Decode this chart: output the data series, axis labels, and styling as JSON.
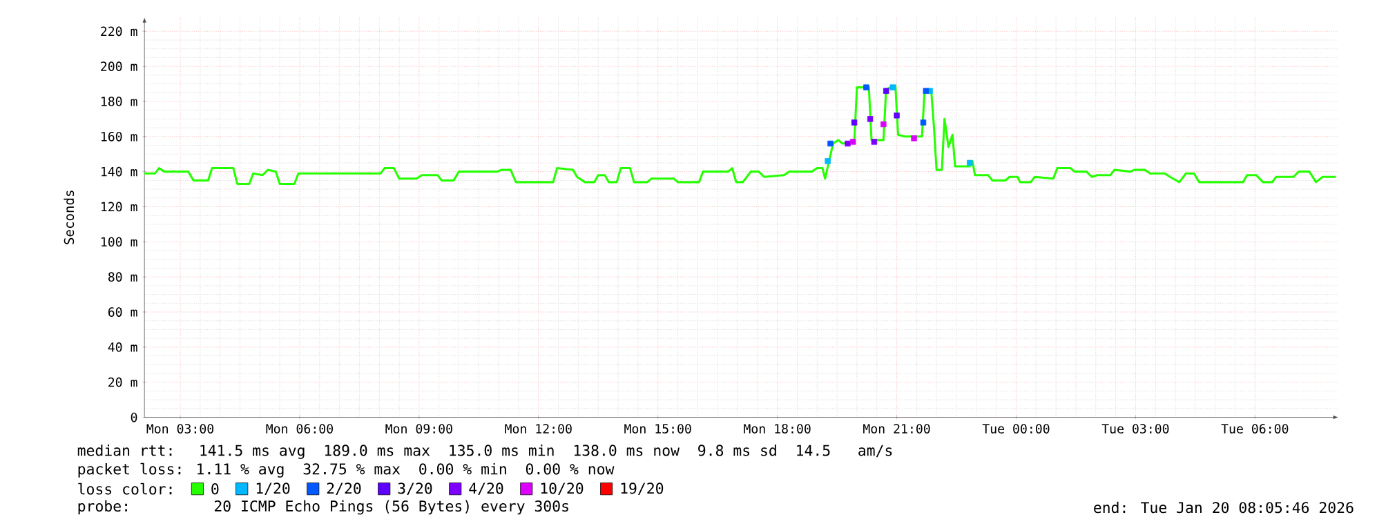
{
  "chart_data": {
    "type": "scatter",
    "ylabel": "Seconds",
    "legend_title": "loss color:",
    "legend": "bottom",
    "grid": true,
    "xlim": [
      "2026-01-19T02:06",
      "2026-01-20T08:06"
    ],
    "ylim": [
      0,
      228
    ],
    "xticks": [
      {
        "value": "2026-01-19T03:00",
        "label": "Mon 03:00"
      },
      {
        "value": "2026-01-19T06:00",
        "label": "Mon 06:00"
      },
      {
        "value": "2026-01-19T09:00",
        "label": "Mon 09:00"
      },
      {
        "value": "2026-01-19T12:00",
        "label": "Mon 12:00"
      },
      {
        "value": "2026-01-19T15:00",
        "label": "Mon 15:00"
      },
      {
        "value": "2026-01-19T18:00",
        "label": "Mon 18:00"
      },
      {
        "value": "2026-01-19T21:00",
        "label": "Mon 21:00"
      },
      {
        "value": "2026-01-20T00:00",
        "label": "Tue 00:00"
      },
      {
        "value": "2026-01-20T03:00",
        "label": "Tue 03:00"
      },
      {
        "value": "2026-01-20T06:00",
        "label": "Tue 06:00"
      }
    ],
    "yticks": [
      0,
      {
        "value": 20,
        "label": "20 m"
      },
      {
        "value": 40,
        "label": "40 m"
      },
      {
        "value": 60,
        "label": "60 m"
      },
      {
        "value": 80,
        "label": "80 m"
      },
      {
        "value": 100,
        "label": "100 m"
      },
      {
        "value": 120,
        "label": "120 m"
      },
      {
        "value": 140,
        "label": "140 m"
      },
      {
        "value": 160,
        "label": "160 m"
      },
      {
        "value": 180,
        "label": "180 m"
      },
      {
        "value": 200,
        "label": "200 m"
      },
      {
        "value": 220,
        "label": "220 m"
      }
    ],
    "annotations": [
      "median rtt:  141.5 ms avg  189.0 ms max  135.0 ms min  138.0 ms now  9.8 ms sd  14.5   am/s",
      "packet loss: 1.11 % avg  32.75 % max  0.00 % min  0.00 % now",
      "probe:       20 ICMP Echo Pings (56 Bytes) every 300s",
      "end: Tue Jan 20 08:05:46 2026"
    ],
    "series": [
      {
        "name": "0",
        "type": "line",
        "color": "#26ff00",
        "x": [
          "2026-01-19T02:06",
          "2026-01-19T02:22",
          "2026-01-19T02:28",
          "2026-01-19T02:36",
          "2026-01-19T03:12",
          "2026-01-19T03:20",
          "2026-01-19T03:42",
          "2026-01-19T03:48",
          "2026-01-19T04:20",
          "2026-01-19T04:26",
          "2026-01-19T04:44",
          "2026-01-19T04:50",
          "2026-01-19T05:04",
          "2026-01-19T05:12",
          "2026-01-19T05:24",
          "2026-01-19T05:30",
          "2026-01-19T05:52",
          "2026-01-19T05:58",
          "2026-01-19T08:02",
          "2026-01-19T08:08",
          "2026-01-19T08:22",
          "2026-01-19T08:30",
          "2026-01-19T08:56",
          "2026-01-19T09:04",
          "2026-01-19T09:28",
          "2026-01-19T09:34",
          "2026-01-19T09:52",
          "2026-01-19T10:00",
          "2026-01-19T10:58",
          "2026-01-19T11:04",
          "2026-01-19T11:18",
          "2026-01-19T11:26",
          "2026-01-19T12:22",
          "2026-01-19T12:28",
          "2026-01-19T12:52",
          "2026-01-19T12:58",
          "2026-01-19T13:10",
          "2026-01-19T13:24",
          "2026-01-19T13:30",
          "2026-01-19T13:40",
          "2026-01-19T13:46",
          "2026-01-19T13:58",
          "2026-01-19T14:04",
          "2026-01-19T14:18",
          "2026-01-19T14:24",
          "2026-01-19T14:44",
          "2026-01-19T14:50",
          "2026-01-19T15:24",
          "2026-01-19T15:30",
          "2026-01-19T16:02",
          "2026-01-19T16:08",
          "2026-01-19T16:46",
          "2026-01-19T16:52",
          "2026-01-19T16:58",
          "2026-01-19T17:08",
          "2026-01-19T17:20",
          "2026-01-19T17:32",
          "2026-01-19T17:40",
          "2026-01-19T18:10",
          "2026-01-19T18:18",
          "2026-01-19T18:52",
          "2026-01-19T19:00",
          "2026-01-19T19:08",
          "2026-01-19T19:12",
          "2026-01-19T19:18",
          "2026-01-19T19:24",
          "2026-01-19T19:32",
          "2026-01-19T19:38",
          "2026-01-19T19:56",
          "2026-01-19T20:00",
          "2026-01-19T20:18",
          "2026-01-19T20:22",
          "2026-01-19T20:40",
          "2026-01-19T20:44",
          "2026-01-19T20:58",
          "2026-01-19T21:02",
          "2026-01-19T21:12",
          "2026-01-19T21:38",
          "2026-01-19T21:42",
          "2026-01-19T21:52",
          "2026-01-19T21:56",
          "2026-01-19T22:00",
          "2026-01-19T22:08",
          "2026-01-19T22:12",
          "2026-01-19T22:18",
          "2026-01-19T22:24",
          "2026-01-19T22:28",
          "2026-01-19T22:50",
          "2026-01-19T22:54",
          "2026-01-19T22:58",
          "2026-01-19T23:18",
          "2026-01-19T23:24",
          "2026-01-19T23:44",
          "2026-01-19T23:50",
          "2026-01-20T00:02",
          "2026-01-20T00:06",
          "2026-01-20T00:22",
          "2026-01-20T00:28",
          "2026-01-20T00:56",
          "2026-01-20T01:02",
          "2026-01-20T01:22",
          "2026-01-20T01:28",
          "2026-01-20T01:46",
          "2026-01-20T01:54",
          "2026-01-20T02:02",
          "2026-01-20T02:22",
          "2026-01-20T02:28",
          "2026-01-20T02:52",
          "2026-01-20T02:58",
          "2026-01-20T03:14",
          "2026-01-20T03:22",
          "2026-01-20T03:44",
          "2026-01-20T03:52",
          "2026-01-20T04:06",
          "2026-01-20T04:16",
          "2026-01-20T04:28",
          "2026-01-20T04:36",
          "2026-01-20T05:42",
          "2026-01-20T05:48",
          "2026-01-20T06:02",
          "2026-01-20T06:12",
          "2026-01-20T06:26",
          "2026-01-20T06:32",
          "2026-01-20T06:58",
          "2026-01-20T07:06",
          "2026-01-20T07:22",
          "2026-01-20T07:32",
          "2026-01-20T07:42",
          "2026-01-20T08:02"
        ],
        "values": [
          139,
          139,
          142,
          140,
          140,
          135,
          135,
          142,
          142,
          133,
          133,
          139,
          138,
          141,
          140,
          133,
          133,
          139,
          139,
          142,
          142,
          136,
          136,
          138,
          138,
          135,
          135,
          140,
          140,
          141,
          141,
          134,
          134,
          142,
          141,
          137,
          134,
          134,
          138,
          138,
          134,
          134,
          142,
          142,
          134,
          134,
          136,
          136,
          134,
          134,
          140,
          140,
          142,
          134,
          134,
          140,
          140,
          137,
          138,
          140,
          140,
          142,
          142,
          136,
          146,
          156,
          158,
          156,
          157,
          188,
          188,
          158,
          158,
          187,
          189,
          161,
          160,
          160,
          186,
          186,
          166,
          141,
          141,
          170,
          154,
          161,
          143,
          143,
          146,
          138,
          138,
          135,
          135,
          137,
          137,
          134,
          134,
          137,
          136,
          142,
          142,
          140,
          140,
          137,
          138,
          138,
          141,
          140,
          141,
          141,
          139,
          139,
          137,
          134,
          139,
          139,
          134,
          134,
          138,
          138,
          134,
          134,
          137,
          137,
          140,
          140,
          134,
          137,
          137
        ]
      },
      {
        "name": "1/20",
        "marker": "square",
        "color": "#00b8ff",
        "x": [
          "2026-01-19T19:16",
          "2026-01-19T20:54",
          "2026-01-19T21:50",
          "2026-01-19T22:50"
        ],
        "values": [
          146,
          188,
          186,
          145
        ]
      },
      {
        "name": "2/20",
        "marker": "square",
        "color": "#0059ff",
        "x": [
          "2026-01-19T19:20",
          "2026-01-19T20:14",
          "2026-01-19T21:40",
          "2026-01-19T21:44"
        ],
        "values": [
          156,
          188,
          168,
          186
        ]
      },
      {
        "name": "3/20",
        "marker": "square",
        "color": "#5e00ff",
        "x": [
          "2026-01-19T19:56",
          "2026-01-19T20:44",
          "2026-01-19T21:00"
        ],
        "values": [
          168,
          186,
          172
        ]
      },
      {
        "name": "4/20",
        "marker": "square",
        "color": "#7e00ff",
        "x": [
          "2026-01-19T19:46",
          "2026-01-19T20:20",
          "2026-01-19T20:26"
        ],
        "values": [
          156,
          170,
          157
        ]
      },
      {
        "name": "10/20",
        "marker": "square",
        "color": "#dd00ff",
        "x": [
          "2026-01-19T19:54",
          "2026-01-19T20:40",
          "2026-01-19T21:26"
        ],
        "values": [
          157,
          167,
          159
        ]
      },
      {
        "name": "19/20",
        "marker": "square",
        "color": "#ff0000"
      }
    ]
  }
}
